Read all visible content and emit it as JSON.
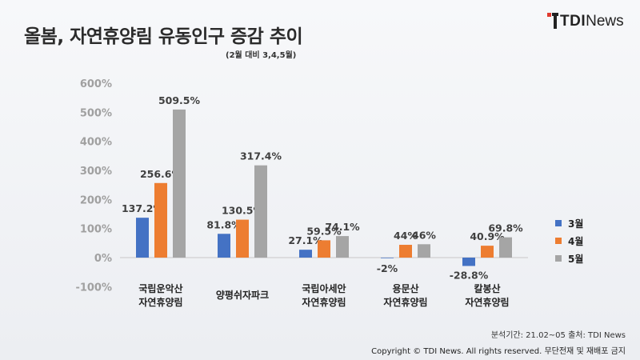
{
  "header": {
    "title": "올봄, 자연휴양림 유동인구 증감 추이",
    "subtitle": "(2월 대비 3,4,5월)"
  },
  "logo": {
    "brand_bold": "TDI",
    "brand_light": "News",
    "accent_color": "#e03a2f"
  },
  "chart_data": {
    "type": "bar",
    "ylim": [
      -100,
      600
    ],
    "yticks": [
      -100,
      0,
      100,
      200,
      300,
      400,
      500,
      600
    ],
    "ytick_labels": [
      "-100%",
      "0%",
      "100%",
      "200%",
      "300%",
      "400%",
      "500%",
      "600%"
    ],
    "grid": false,
    "legend_position": "right",
    "categories": [
      [
        "국립운악산",
        "자연휴양림"
      ],
      [
        "양평쉬자파크"
      ],
      [
        "국립아세안",
        "자연휴양림"
      ],
      [
        "용문산",
        "자연휴양림"
      ],
      [
        "칼봉산",
        "자연휴양림"
      ]
    ],
    "series": [
      {
        "name": "3월",
        "color": "#4472c4",
        "values": [
          137.2,
          81.8,
          27.1,
          -2,
          -28.8
        ],
        "labels": [
          "137.2%",
          "81.8%",
          "27.1%",
          "-2%",
          "-28.8%"
        ]
      },
      {
        "name": "4월",
        "color": "#ed7d31",
        "values": [
          256.6,
          130.5,
          59.5,
          44,
          40.9
        ],
        "labels": [
          "256.6%",
          "130.5%",
          "59.5%",
          "44%",
          "40.9%"
        ]
      },
      {
        "name": "5월",
        "color": "#a5a5a5",
        "values": [
          509.5,
          317.4,
          74.1,
          46,
          69.8
        ],
        "labels": [
          "509.5%",
          "317.4%",
          "74.1%",
          "46%",
          "69.8%"
        ]
      }
    ]
  },
  "footer": {
    "analysis": "분석기간: 21.02~05   출처: TDI News",
    "copyright": "Copyright © TDI News. All rights reserved. 무단전재 및 재배포 금지"
  }
}
